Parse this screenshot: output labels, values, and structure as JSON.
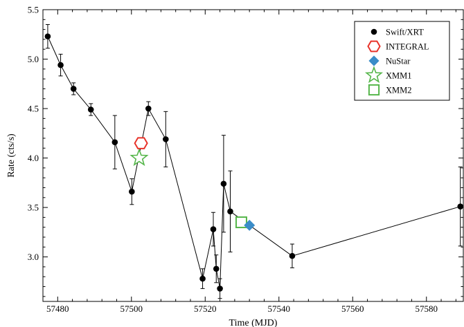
{
  "chart_data": {
    "type": "scatter",
    "title": "",
    "xlabel": "Time (MJD)",
    "ylabel": "Rate (cts/s)",
    "xlim": [
      57476,
      57590
    ],
    "ylim": [
      2.55,
      5.5
    ],
    "xticks": [
      57480,
      57500,
      57520,
      57540,
      57560,
      57580
    ],
    "yticks": [
      3.0,
      3.5,
      4.0,
      4.5,
      5.0,
      5.5
    ],
    "ytick_labels": [
      "3.0",
      "3.5",
      "4.0",
      "4.5",
      "5.0",
      "5.5"
    ],
    "grid": false,
    "legend_position": "top-right",
    "series": [
      {
        "name": "Swift/XRT",
        "marker": "circle",
        "color": "#000000",
        "connected": true,
        "points": [
          {
            "x": 57477.3,
            "y": 5.23,
            "err": 0.12
          },
          {
            "x": 57480.8,
            "y": 4.94,
            "err": 0.11
          },
          {
            "x": 57484.3,
            "y": 4.7,
            "err": 0.06
          },
          {
            "x": 57489.0,
            "y": 4.49,
            "err": 0.06
          },
          {
            "x": 57495.5,
            "y": 4.16,
            "err": 0.27
          },
          {
            "x": 57500.1,
            "y": 3.66,
            "err": 0.13
          },
          {
            "x": 57504.6,
            "y": 4.5,
            "err": 0.07
          },
          {
            "x": 57509.3,
            "y": 4.19,
            "err": 0.28
          },
          {
            "x": 57519.3,
            "y": 2.78,
            "err": 0.1
          },
          {
            "x": 57522.2,
            "y": 3.28,
            "err": 0.17
          },
          {
            "x": 57523.0,
            "y": 2.88,
            "err": 0.14
          },
          {
            "x": 57524.0,
            "y": 2.68,
            "err": 0.1
          },
          {
            "x": 57525.0,
            "y": 3.74,
            "err": 0.49
          },
          {
            "x": 57526.8,
            "y": 3.46,
            "err": 0.41
          },
          {
            "x": 57543.6,
            "y": 3.01,
            "err": 0.12
          },
          {
            "x": 57589.2,
            "y": 3.51,
            "err": 0.4
          }
        ]
      },
      {
        "name": "INTEGRAL",
        "marker": "hexagon",
        "color": "#e8332a",
        "points": [
          {
            "x": 57502.6,
            "y": 4.15
          }
        ]
      },
      {
        "name": "NuStar",
        "marker": "diamond",
        "color": "#3a8cc8",
        "points": [
          {
            "x": 57532.0,
            "y": 3.32
          }
        ]
      },
      {
        "name": "XMM1",
        "marker": "star",
        "color": "#55b64a",
        "points": [
          {
            "x": 57502.1,
            "y": 4.0
          }
        ]
      },
      {
        "name": "XMM2",
        "marker": "square",
        "color": "#55b64a",
        "points": [
          {
            "x": 57529.8,
            "y": 3.35
          }
        ]
      }
    ]
  }
}
